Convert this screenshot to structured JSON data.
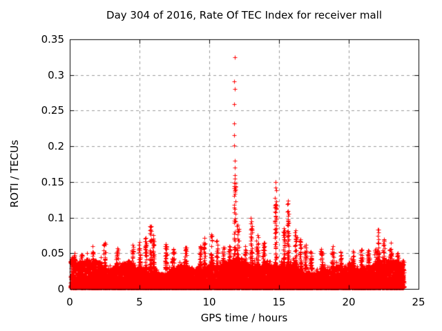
{
  "chart_data": {
    "type": "scatter",
    "title": "Day 304 of 2016, Rate Of TEC Index for receiver mall",
    "xlabel": "GPS time / hours",
    "ylabel": "ROTI / TECUs",
    "xlim": [
      0,
      25
    ],
    "ylim": [
      0,
      0.35
    ],
    "xticks": [
      0,
      5,
      10,
      15,
      20,
      25
    ],
    "yticks": [
      0,
      0.05,
      0.1,
      0.15,
      0.2,
      0.25,
      0.3,
      0.35
    ],
    "xtick_labels": [
      "0",
      "5",
      "10",
      "15",
      "20",
      "25"
    ],
    "ytick_labels": [
      "0",
      "0.05",
      "0.1",
      "0.15",
      "0.2",
      "0.25",
      "0.3",
      "0.35"
    ],
    "grid": {
      "style": "dashed",
      "color": "#9a9a9a"
    },
    "marker": {
      "shape": "plus",
      "color": "#ff0000",
      "size": 7
    },
    "axis_color": "#000000",
    "legend": "none",
    "x_data_range": [
      0.05,
      23.95
    ],
    "noise_band": {
      "description": "dense noise floor of ROTI values across the whole day",
      "y_dense_top": 0.025,
      "y_typical_top": 0.042,
      "n_points": 15000
    },
    "main_spike": {
      "x": 11.82,
      "isolated_points": [
        0.325,
        0.291,
        0.28,
        0.259,
        0.232,
        0.216,
        0.201,
        0.18,
        0.17,
        0.16
      ],
      "column_top": 0.155,
      "column_points": 55
    },
    "spikes": [
      {
        "x": 0.35,
        "peak": 0.05
      },
      {
        "x": 0.85,
        "peak": 0.048
      },
      {
        "x": 1.65,
        "peak": 0.06
      },
      {
        "x": 2.5,
        "peak": 0.065
      },
      {
        "x": 3.4,
        "peak": 0.057
      },
      {
        "x": 4.5,
        "peak": 0.062
      },
      {
        "x": 5.0,
        "peak": 0.066
      },
      {
        "x": 5.45,
        "peak": 0.072
      },
      {
        "x": 5.8,
        "peak": 0.088
      },
      {
        "x": 6.0,
        "peak": 0.075
      },
      {
        "x": 6.9,
        "peak": 0.063
      },
      {
        "x": 7.4,
        "peak": 0.056
      },
      {
        "x": 8.3,
        "peak": 0.058
      },
      {
        "x": 9.35,
        "peak": 0.06
      },
      {
        "x": 9.65,
        "peak": 0.072
      },
      {
        "x": 10.15,
        "peak": 0.076
      },
      {
        "x": 10.55,
        "peak": 0.068
      },
      {
        "x": 11.0,
        "peak": 0.058
      },
      {
        "x": 11.45,
        "peak": 0.06
      },
      {
        "x": 12.05,
        "peak": 0.09
      },
      {
        "x": 12.55,
        "peak": 0.06
      },
      {
        "x": 13.0,
        "peak": 0.1
      },
      {
        "x": 13.45,
        "peak": 0.075
      },
      {
        "x": 13.9,
        "peak": 0.065
      },
      {
        "x": 14.75,
        "peak": 0.15
      },
      {
        "x": 15.35,
        "peak": 0.085
      },
      {
        "x": 15.65,
        "peak": 0.124
      },
      {
        "x": 16.2,
        "peak": 0.082
      },
      {
        "x": 16.55,
        "peak": 0.07
      },
      {
        "x": 16.9,
        "peak": 0.062
      },
      {
        "x": 17.3,
        "peak": 0.052
      },
      {
        "x": 18.05,
        "peak": 0.056
      },
      {
        "x": 18.85,
        "peak": 0.06
      },
      {
        "x": 19.4,
        "peak": 0.052
      },
      {
        "x": 20.3,
        "peak": 0.053
      },
      {
        "x": 20.9,
        "peak": 0.055
      },
      {
        "x": 21.4,
        "peak": 0.054
      },
      {
        "x": 21.9,
        "peak": 0.056
      },
      {
        "x": 22.1,
        "peak": 0.083
      },
      {
        "x": 22.5,
        "peak": 0.07
      },
      {
        "x": 23.0,
        "peak": 0.065
      },
      {
        "x": 23.5,
        "peak": 0.05
      }
    ]
  }
}
